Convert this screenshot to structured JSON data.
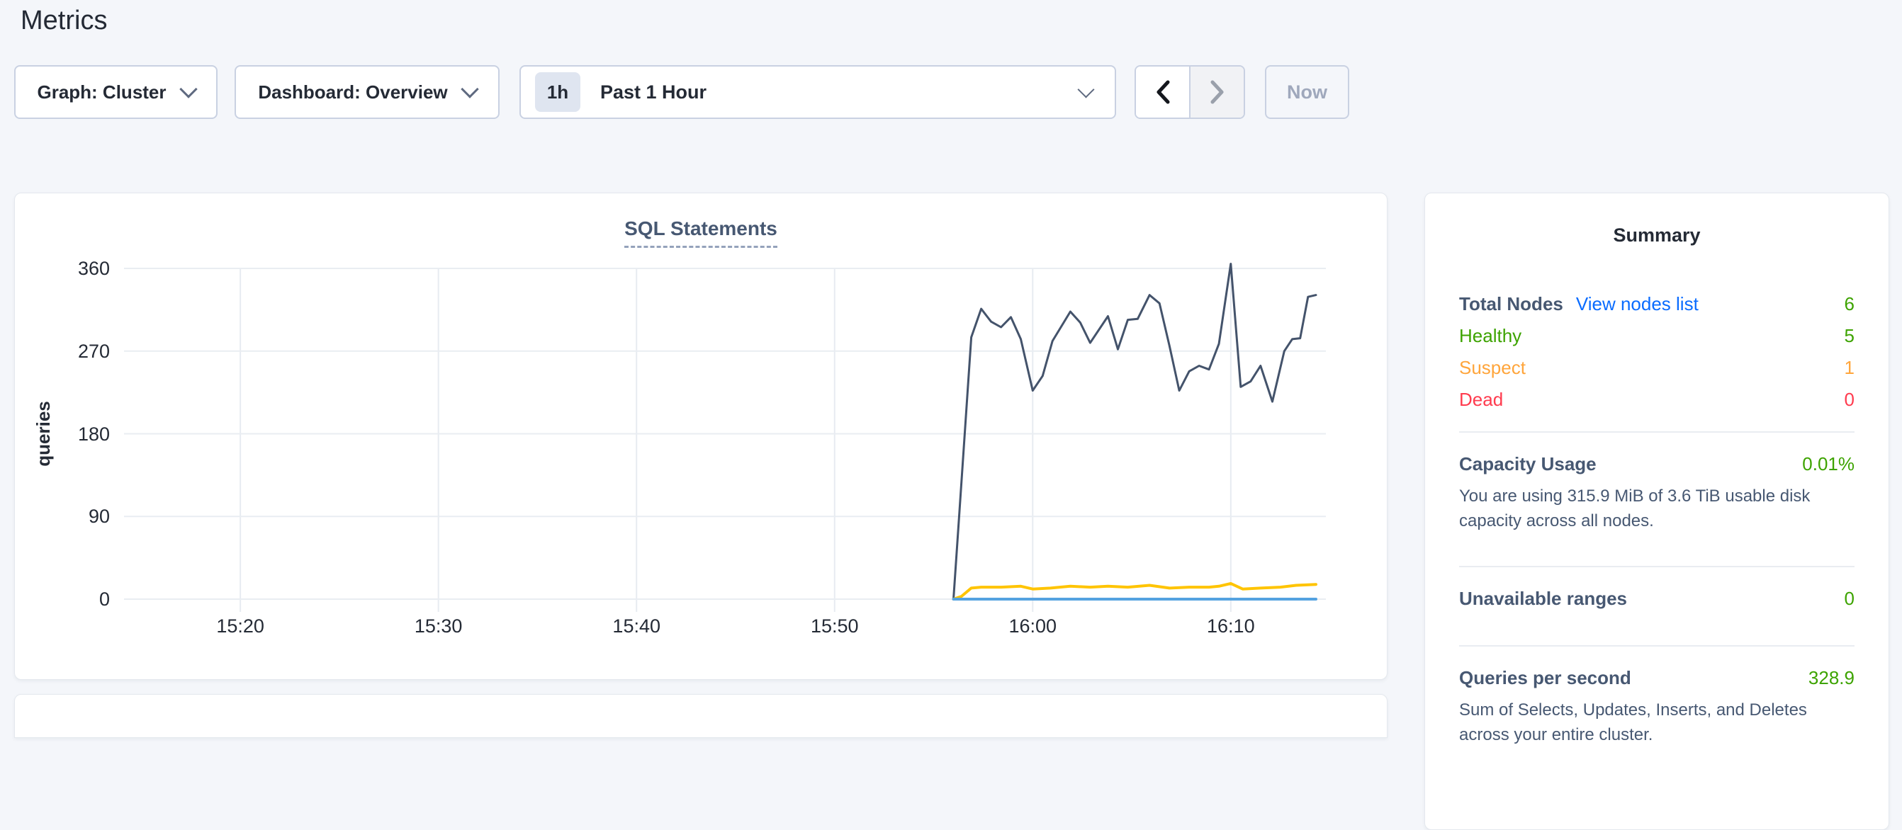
{
  "page": {
    "title": "Metrics"
  },
  "toolbar": {
    "graph_label": "Graph: Cluster",
    "dashboard_label": "Dashboard: Overview",
    "time_badge": "1h",
    "time_label": "Past 1 Hour",
    "now_label": "Now"
  },
  "icons": {
    "graph_dropdown": "chevron-down-icon",
    "dashboard_dropdown": "chevron-down-icon",
    "time_dropdown": "chevron-down-icon",
    "prev": "chevron-left-icon",
    "next": "chevron-right-icon"
  },
  "colors": {
    "link_blue": "#0a6cff",
    "healthy_green": "#3da300",
    "suspect_orange": "#ffa53b",
    "dead_red": "#ff3b4e",
    "slate_text": "#475872",
    "heading_text": "#242a35"
  },
  "summary": {
    "title": "Summary",
    "nodes": {
      "rows": [
        {
          "label": "Total Nodes",
          "link": "View nodes list",
          "value": "6",
          "value_color": "#3da300"
        },
        {
          "label": "Healthy",
          "value": "5",
          "color": "#3da300"
        },
        {
          "label": "Suspect",
          "value": "1",
          "color": "#ffa53b"
        },
        {
          "label": "Dead",
          "value": "0",
          "color": "#ff3b4e"
        }
      ]
    },
    "sections": [
      {
        "label": "Capacity Usage",
        "value": "0.01%",
        "value_color": "#3da300",
        "description": "You are using 315.9 MiB of 3.6 TiB usable disk capacity across all nodes."
      },
      {
        "label": "Unavailable ranges",
        "value": "0",
        "value_color": "#3da300"
      },
      {
        "label": "Queries per second",
        "value": "328.9",
        "value_color": "#3da300",
        "description": "Sum of Selects, Updates, Inserts, and Deletes across your entire cluster."
      }
    ]
  },
  "chart_data": {
    "type": "line",
    "title": "SQL Statements",
    "xlabel": "",
    "ylabel": "queries",
    "x_unit": "minutes after 15:00",
    "xlim_minutes": [
      14.7,
      74.8
    ],
    "ylim": [
      0,
      360
    ],
    "grid": true,
    "legend": "none",
    "x_ticks": [
      {
        "t": 20,
        "label": "15:20"
      },
      {
        "t": 30,
        "label": "15:30"
      },
      {
        "t": 40,
        "label": "15:40"
      },
      {
        "t": 50,
        "label": "15:50"
      },
      {
        "t": 60,
        "label": "16:00"
      },
      {
        "t": 70,
        "label": "16:10"
      }
    ],
    "y_ticks": [
      {
        "v": 0,
        "label": "0"
      },
      {
        "v": 90,
        "label": "90"
      },
      {
        "v": 180,
        "label": "180"
      },
      {
        "v": 270,
        "label": "270"
      },
      {
        "v": 360,
        "label": "360"
      }
    ],
    "series": [
      {
        "name": "series-1-dark",
        "color": "#44536b",
        "width": 3,
        "points": [
          [
            56.0,
            0
          ],
          [
            56.3,
            95
          ],
          [
            56.9,
            285
          ],
          [
            57.4,
            316
          ],
          [
            57.9,
            302
          ],
          [
            58.4,
            296
          ],
          [
            58.9,
            307
          ],
          [
            59.4,
            283
          ],
          [
            60.0,
            227
          ],
          [
            60.5,
            243
          ],
          [
            61.0,
            281
          ],
          [
            61.9,
            313
          ],
          [
            62.4,
            301
          ],
          [
            62.9,
            279
          ],
          [
            63.8,
            308
          ],
          [
            64.3,
            272
          ],
          [
            64.8,
            304
          ],
          [
            65.3,
            305
          ],
          [
            65.9,
            331
          ],
          [
            66.4,
            322
          ],
          [
            66.9,
            276
          ],
          [
            67.4,
            227
          ],
          [
            67.9,
            248
          ],
          [
            68.4,
            254
          ],
          [
            68.9,
            250
          ],
          [
            69.4,
            278
          ],
          [
            70.0,
            365
          ],
          [
            70.5,
            231
          ],
          [
            71.0,
            237
          ],
          [
            71.5,
            254
          ],
          [
            72.1,
            215
          ],
          [
            72.7,
            270
          ],
          [
            73.1,
            283
          ],
          [
            73.5,
            284
          ],
          [
            73.9,
            329
          ],
          [
            74.3,
            331
          ]
        ]
      },
      {
        "name": "series-2-yellow",
        "color": "#ffc400",
        "width": 4,
        "points": [
          [
            56.0,
            0
          ],
          [
            56.4,
            3
          ],
          [
            56.9,
            12
          ],
          [
            57.4,
            13
          ],
          [
            58.4,
            13
          ],
          [
            59.4,
            14
          ],
          [
            60.0,
            11
          ],
          [
            60.9,
            12
          ],
          [
            61.9,
            14
          ],
          [
            62.9,
            13
          ],
          [
            63.8,
            14
          ],
          [
            64.8,
            13
          ],
          [
            65.9,
            15
          ],
          [
            66.9,
            12
          ],
          [
            67.9,
            13
          ],
          [
            68.9,
            13
          ],
          [
            69.4,
            14
          ],
          [
            70.0,
            17
          ],
          [
            70.6,
            11
          ],
          [
            71.5,
            12
          ],
          [
            72.5,
            13
          ],
          [
            73.3,
            15
          ],
          [
            74.3,
            16
          ]
        ]
      },
      {
        "name": "series-3-blue",
        "color": "#54a2e0",
        "width": 4,
        "points": [
          [
            56.0,
            0
          ],
          [
            74.3,
            0
          ]
        ]
      }
    ]
  }
}
